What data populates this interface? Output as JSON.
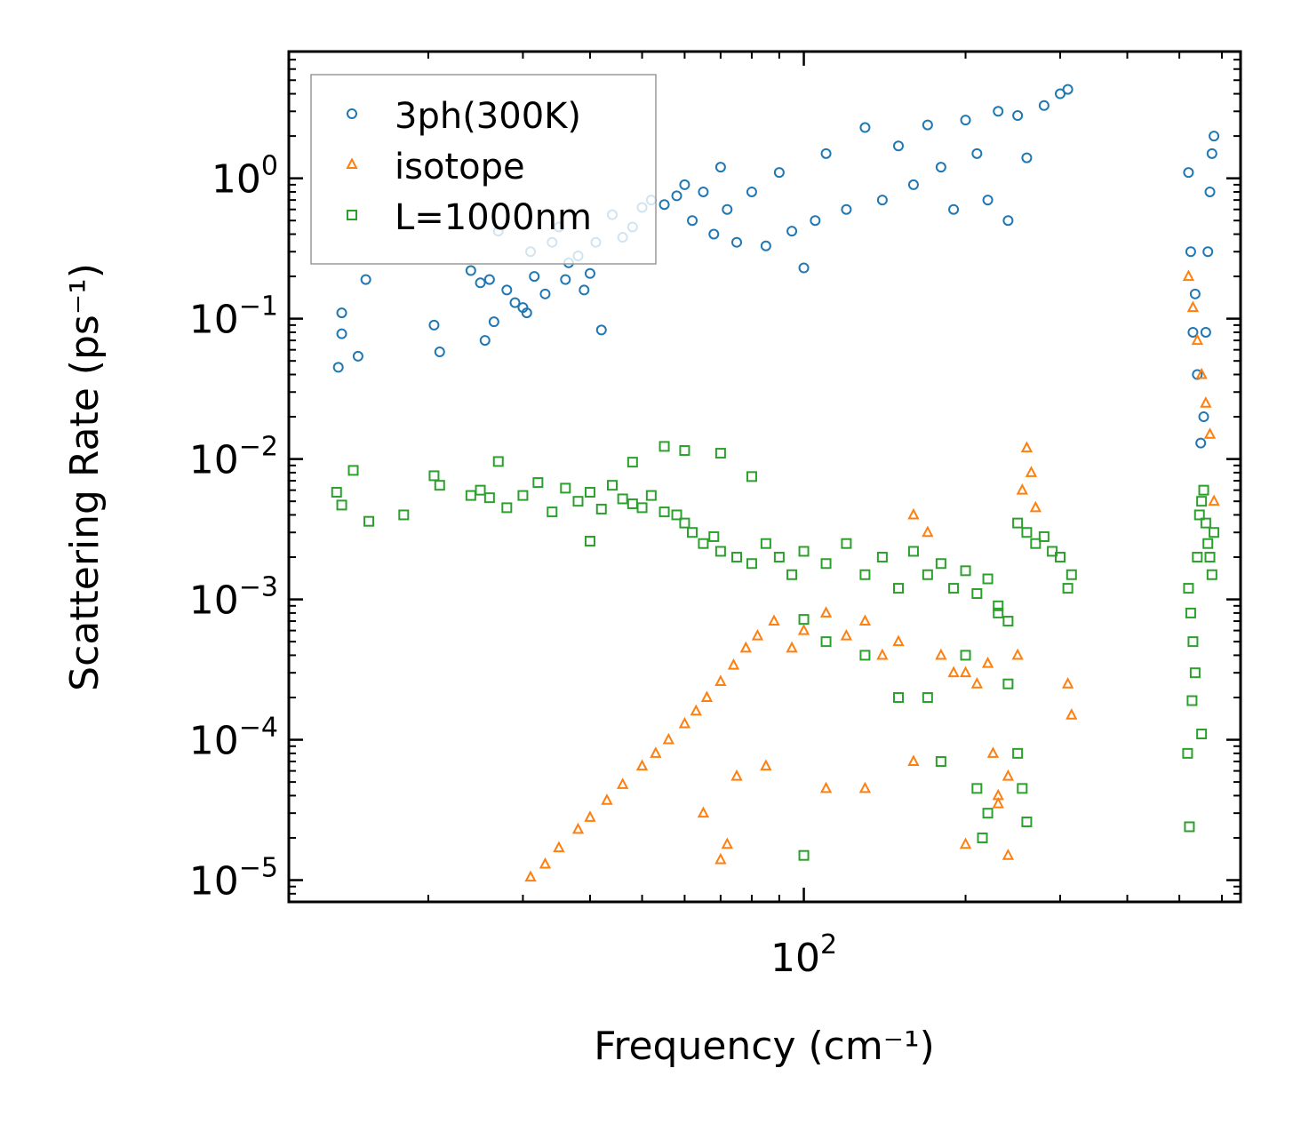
{
  "chart_data": {
    "type": "scatter",
    "title": "",
    "xlabel": "Frequency (cm⁻¹)",
    "ylabel": "Scattering Rate (ps⁻¹)",
    "xscale": "log",
    "yscale": "log",
    "xlim": [
      11,
      650
    ],
    "ylim": [
      7e-06,
      8
    ],
    "x_ticks": [
      {
        "value": 100,
        "base": "10",
        "exp": "2"
      }
    ],
    "y_ticks": [
      {
        "value": 1,
        "base": "10",
        "exp": "0"
      },
      {
        "value": 0.1,
        "base": "10",
        "exp": "−1"
      },
      {
        "value": 0.01,
        "base": "10",
        "exp": "−2"
      },
      {
        "value": 0.001,
        "base": "10",
        "exp": "−3"
      },
      {
        "value": 0.0001,
        "base": "10",
        "exp": "−4"
      },
      {
        "value": 1e-05,
        "base": "10",
        "exp": "−5"
      }
    ],
    "legend_position": "top-left",
    "series": [
      {
        "name": "3ph(300K)",
        "marker": "circle",
        "color": "#1f77b4",
        "points": [
          [
            13.6,
            0.045
          ],
          [
            13.8,
            0.078
          ],
          [
            13.8,
            0.11
          ],
          [
            14.8,
            0.054
          ],
          [
            15.3,
            0.19
          ],
          [
            20.5,
            0.09
          ],
          [
            21,
            0.058
          ],
          [
            24,
            0.22
          ],
          [
            25,
            0.18
          ],
          [
            25.5,
            0.07
          ],
          [
            26,
            0.19
          ],
          [
            26.5,
            0.095
          ],
          [
            27,
            0.42
          ],
          [
            28,
            0.16
          ],
          [
            29,
            0.13
          ],
          [
            30,
            0.12
          ],
          [
            30.5,
            0.11
          ],
          [
            31,
            0.3
          ],
          [
            31.5,
            0.2
          ],
          [
            33,
            0.15
          ],
          [
            34,
            0.35
          ],
          [
            35,
            0.45
          ],
          [
            36,
            0.19
          ],
          [
            36.5,
            0.25
          ],
          [
            38,
            0.28
          ],
          [
            39,
            0.16
          ],
          [
            40,
            0.21
          ],
          [
            41,
            0.35
          ],
          [
            42,
            0.083
          ],
          [
            44,
            0.55
          ],
          [
            46,
            0.38
          ],
          [
            48,
            0.45
          ],
          [
            50,
            0.62
          ],
          [
            52,
            0.7
          ],
          [
            55,
            0.65
          ],
          [
            58,
            0.75
          ],
          [
            60,
            0.9
          ],
          [
            62,
            0.5
          ],
          [
            65,
            0.8
          ],
          [
            68,
            0.4
          ],
          [
            70,
            1.2
          ],
          [
            72,
            0.6
          ],
          [
            75,
            0.35
          ],
          [
            80,
            0.8
          ],
          [
            85,
            0.33
          ],
          [
            90,
            1.1
          ],
          [
            95,
            0.42
          ],
          [
            100,
            0.23
          ],
          [
            105,
            0.5
          ],
          [
            110,
            1.5
          ],
          [
            120,
            0.6
          ],
          [
            130,
            2.3
          ],
          [
            140,
            0.7
          ],
          [
            150,
            1.7
          ],
          [
            160,
            0.9
          ],
          [
            170,
            2.4
          ],
          [
            180,
            1.2
          ],
          [
            190,
            0.6
          ],
          [
            200,
            2.6
          ],
          [
            210,
            1.5
          ],
          [
            220,
            0.7
          ],
          [
            230,
            3.0
          ],
          [
            240,
            0.5
          ],
          [
            250,
            2.8
          ],
          [
            260,
            1.4
          ],
          [
            280,
            3.3
          ],
          [
            300,
            4.0
          ],
          [
            310,
            4.3
          ],
          [
            520,
            1.1
          ],
          [
            525,
            0.3
          ],
          [
            530,
            0.08
          ],
          [
            535,
            0.15
          ],
          [
            540,
            0.04
          ],
          [
            548,
            0.013
          ],
          [
            555,
            0.02
          ],
          [
            560,
            0.08
          ],
          [
            565,
            0.3
          ],
          [
            570,
            0.8
          ],
          [
            575,
            1.5
          ],
          [
            580,
            2.0
          ]
        ]
      },
      {
        "name": "isotope",
        "marker": "triangle",
        "color": "#ff7f0e",
        "points": [
          [
            31,
            1.05e-05
          ],
          [
            33,
            1.3e-05
          ],
          [
            35,
            1.7e-05
          ],
          [
            38,
            2.3e-05
          ],
          [
            40,
            2.8e-05
          ],
          [
            43,
            3.7e-05
          ],
          [
            46,
            4.8e-05
          ],
          [
            50,
            6.5e-05
          ],
          [
            53,
            8e-05
          ],
          [
            56,
            0.0001
          ],
          [
            60,
            0.00013
          ],
          [
            63,
            0.00016
          ],
          [
            66,
            0.0002
          ],
          [
            70,
            0.00026
          ],
          [
            74,
            0.00034
          ],
          [
            78,
            0.00045
          ],
          [
            82,
            0.00055
          ],
          [
            88,
            0.0007
          ],
          [
            95,
            0.00045
          ],
          [
            100,
            0.0006
          ],
          [
            110,
            0.0008
          ],
          [
            120,
            0.00055
          ],
          [
            130,
            0.0007
          ],
          [
            140,
            0.0004
          ],
          [
            150,
            0.0005
          ],
          [
            160,
            0.004
          ],
          [
            170,
            0.003
          ],
          [
            180,
            0.0004
          ],
          [
            190,
            0.0003
          ],
          [
            200,
            0.0003
          ],
          [
            210,
            0.00025
          ],
          [
            220,
            0.00035
          ],
          [
            225,
            8e-05
          ],
          [
            230,
            4e-05
          ],
          [
            240,
            1.5e-05
          ],
          [
            250,
            0.0004
          ],
          [
            255,
            0.006
          ],
          [
            260,
            0.012
          ],
          [
            265,
            0.008
          ],
          [
            270,
            0.0045
          ],
          [
            310,
            0.00025
          ],
          [
            315,
            0.00015
          ],
          [
            520,
            0.2
          ],
          [
            530,
            0.12
          ],
          [
            540,
            0.07
          ],
          [
            550,
            0.04
          ],
          [
            560,
            0.025
          ],
          [
            570,
            0.015
          ],
          [
            580,
            0.005
          ],
          [
            70,
            1.4e-05
          ],
          [
            72,
            1.8e-05
          ],
          [
            65,
            3e-05
          ],
          [
            75,
            5.5e-05
          ],
          [
            85,
            6.5e-05
          ],
          [
            110,
            4.5e-05
          ],
          [
            130,
            4.5e-05
          ],
          [
            160,
            7e-05
          ],
          [
            200,
            1.8e-05
          ],
          [
            230,
            3.5e-05
          ],
          [
            240,
            5.5e-05
          ]
        ]
      },
      {
        "name": "L=1000nm",
        "marker": "square",
        "color": "#2ca02c",
        "points": [
          [
            13.5,
            0.0058
          ],
          [
            13.8,
            0.0047
          ],
          [
            14.5,
            0.0083
          ],
          [
            15.5,
            0.0036
          ],
          [
            18,
            0.004
          ],
          [
            20.5,
            0.0076
          ],
          [
            21,
            0.0065
          ],
          [
            24,
            0.0055
          ],
          [
            25,
            0.006
          ],
          [
            26,
            0.0053
          ],
          [
            27,
            0.0096
          ],
          [
            28,
            0.0045
          ],
          [
            30,
            0.0055
          ],
          [
            32,
            0.0068
          ],
          [
            34,
            0.0042
          ],
          [
            36,
            0.0062
          ],
          [
            38,
            0.005
          ],
          [
            40,
            0.0058
          ],
          [
            42,
            0.0044
          ],
          [
            44,
            0.0065
          ],
          [
            46,
            0.0052
          ],
          [
            48,
            0.0048
          ],
          [
            50,
            0.0045
          ],
          [
            52,
            0.0055
          ],
          [
            55,
            0.0042
          ],
          [
            58,
            0.004
          ],
          [
            60,
            0.0035
          ],
          [
            62,
            0.003
          ],
          [
            65,
            0.0025
          ],
          [
            68,
            0.0028
          ],
          [
            70,
            0.0022
          ],
          [
            75,
            0.002
          ],
          [
            80,
            0.0018
          ],
          [
            85,
            0.0025
          ],
          [
            90,
            0.002
          ],
          [
            95,
            0.0015
          ],
          [
            100,
            0.0022
          ],
          [
            110,
            0.0018
          ],
          [
            120,
            0.0025
          ],
          [
            130,
            0.0015
          ],
          [
            140,
            0.002
          ],
          [
            150,
            0.0012
          ],
          [
            160,
            0.0022
          ],
          [
            170,
            0.0015
          ],
          [
            180,
            0.0018
          ],
          [
            190,
            0.0012
          ],
          [
            200,
            0.0016
          ],
          [
            210,
            0.0011
          ],
          [
            220,
            0.0014
          ],
          [
            230,
            0.0009
          ],
          [
            240,
            0.0007
          ],
          [
            250,
            0.0035
          ],
          [
            260,
            0.003
          ],
          [
            270,
            0.0025
          ],
          [
            280,
            0.0028
          ],
          [
            290,
            0.0022
          ],
          [
            300,
            0.002
          ],
          [
            310,
            0.0012
          ],
          [
            315,
            0.0015
          ],
          [
            40,
            0.0026
          ],
          [
            48,
            0.0095
          ],
          [
            55,
            0.0123
          ],
          [
            60,
            0.0115
          ],
          [
            70,
            0.011
          ],
          [
            80,
            0.0075
          ],
          [
            100,
            0.00072
          ],
          [
            110,
            0.0005
          ],
          [
            130,
            0.0004
          ],
          [
            150,
            0.0002
          ],
          [
            170,
            0.0002
          ],
          [
            200,
            0.0004
          ],
          [
            210,
            4.5e-05
          ],
          [
            215,
            2e-05
          ],
          [
            220,
            3e-05
          ],
          [
            230,
            0.0008
          ],
          [
            240,
            0.00025
          ],
          [
            250,
            8e-05
          ],
          [
            255,
            4.5e-05
          ],
          [
            260,
            2.6e-05
          ],
          [
            100,
            1.5e-05
          ],
          [
            180,
            7e-05
          ],
          [
            520,
            0.0012
          ],
          [
            525,
            0.0008
          ],
          [
            530,
            0.0005
          ],
          [
            535,
            0.0003
          ],
          [
            540,
            0.002
          ],
          [
            545,
            0.004
          ],
          [
            550,
            0.005
          ],
          [
            555,
            0.006
          ],
          [
            560,
            0.0035
          ],
          [
            565,
            0.0025
          ],
          [
            570,
            0.002
          ],
          [
            575,
            0.0015
          ],
          [
            580,
            0.003
          ],
          [
            518,
            8e-05
          ],
          [
            522,
            2.4e-05
          ],
          [
            528,
            0.00019
          ],
          [
            550,
            0.00011
          ]
        ]
      }
    ]
  }
}
